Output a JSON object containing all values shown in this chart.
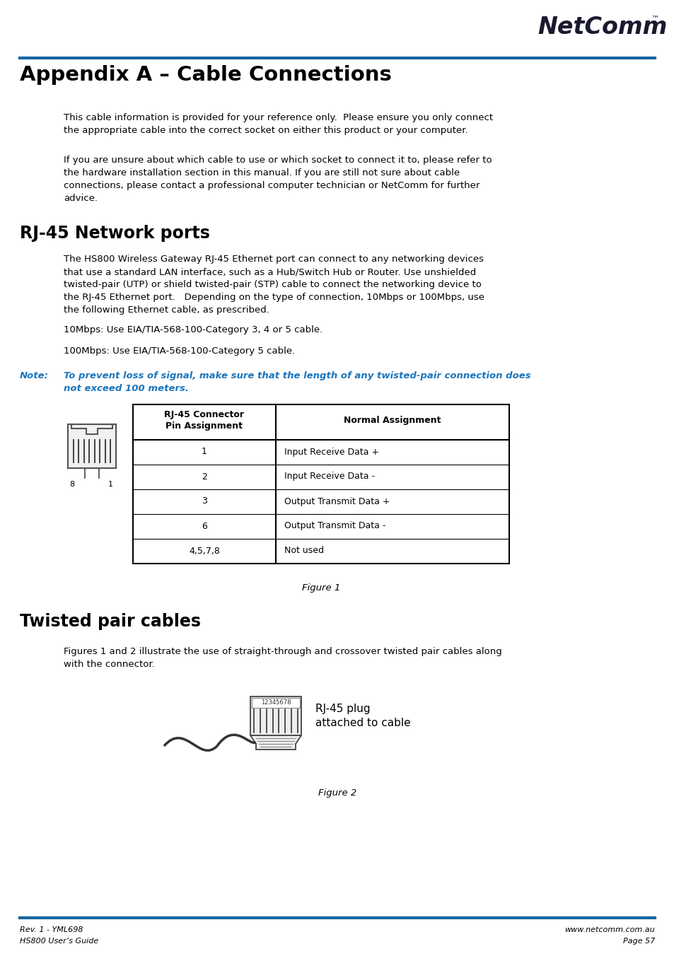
{
  "page_bg": "#ffffff",
  "blue_line_color": "#1565a0",
  "title": "Appendix A – Cable Connections",
  "section1_title": "RJ-45 Network ports",
  "section2_title": "Twisted pair cables",
  "para1_line1": "This cable information is provided for your reference only.  Please ensure you only connect",
  "para1_line2": "the appropriate cable into the correct socket on either this product or your computer.",
  "para2_line1": "If you are unsure about which cable to use or which socket to connect it to, please refer to",
  "para2_line2": "the hardware installation section in this manual. If you are still not sure about cable",
  "para2_line3": "connections, please contact a professional computer technician or NetComm for further",
  "para2_line4": "advice.",
  "rj45_para_line1": "The HS800 Wireless Gateway RJ-45 Ethernet port can connect to any networking devices",
  "rj45_para_line2": "that use a standard LAN interface, such as a Hub/Switch Hub or Router. Use unshielded",
  "rj45_para_line3": "twisted-pair (UTP) or shield twisted-pair (STP) cable to connect the networking device to",
  "rj45_para_line4": "the RJ-45 Ethernet port.   Depending on the type of connection, 10Mbps or 100Mbps, use",
  "rj45_para_line5": "the following Ethernet cable, as prescribed.",
  "line_10mbps": "10Mbps: Use EIA/TIA-568-100-Category 3, 4 or 5 cable.",
  "line_100mbps": "100Mbps: Use EIA/TIA-568-100-Category 5 cable.",
  "note_label": "Note:",
  "note_line1": "To prevent loss of signal, make sure that the length of any twisted-pair connection does",
  "note_line2": "not exceed 100 meters.",
  "table_col1_header1": "RJ-45 Connector",
  "table_col1_header2": "Pin Assignment",
  "table_col2_header": "Normal Assignment",
  "table_rows": [
    [
      "1",
      "Input Receive Data +"
    ],
    [
      "2",
      "Input Receive Data -"
    ],
    [
      "3",
      "Output Transmit Data +"
    ],
    [
      "6",
      "Output Transmit Data -"
    ],
    [
      "4,5,7,8",
      "Not used"
    ]
  ],
  "figure1_caption": "Figure 1",
  "twisted_para_line1": "Figures 1 and 2 illustrate the use of straight-through and crossover twisted pair cables along",
  "twisted_para_line2": "with the connector.",
  "rj45_plug_line1": "RJ-45 plug",
  "rj45_plug_line2": "attached to cable",
  "figure2_caption": "Figure 2",
  "footer_left1": "Rev. 1 - YML698",
  "footer_left2": "HS800 User’s Guide",
  "footer_right1": "www.netcomm.com.au",
  "footer_right2": "Page 57",
  "note_color": "#1a75bc",
  "text_color": "#000000",
  "table_border_color": "#000000",
  "logo_color": "#1a1a2e",
  "line_color": "#1565a0"
}
